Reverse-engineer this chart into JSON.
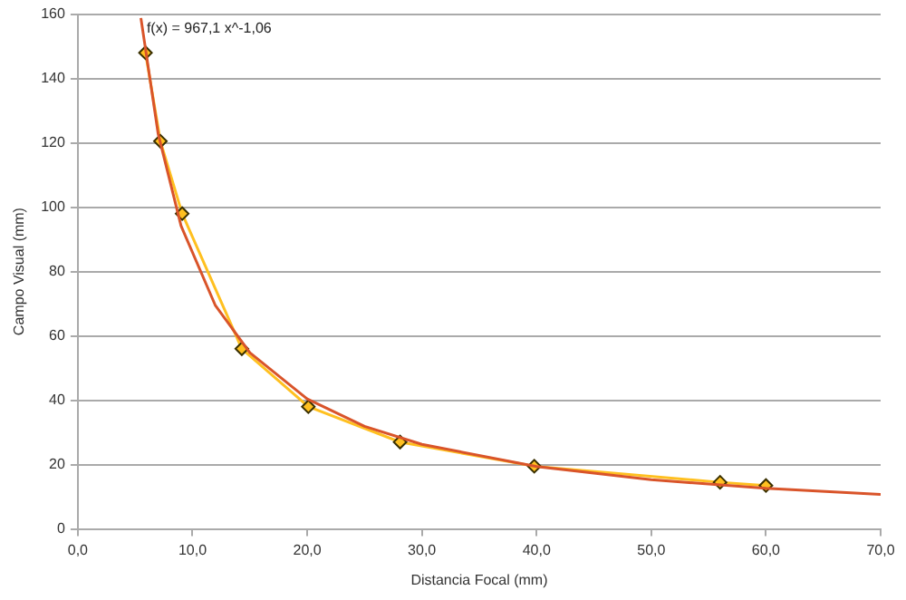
{
  "chart_data": {
    "type": "scatter",
    "xlabel": "Distancia Focal (mm)",
    "ylabel": "Campo Visual (mm)",
    "annotations": [
      "f(x) = 967,1 x^-1,06"
    ],
    "series": [
      {
        "type": "line",
        "color": "#ffc020",
        "marker": "diamond",
        "x": [
          5.9,
          7.2,
          9.1,
          14.3,
          20.1,
          28.1,
          39.8,
          56,
          60
        ],
        "values": [
          148,
          120.5,
          98,
          56,
          38,
          27,
          19.5,
          14.5,
          13.5
        ]
      },
      {
        "type": "line",
        "color": "#d9542a",
        "marker": "none",
        "x": [
          5.5,
          7,
          9,
          12,
          15,
          20,
          25,
          30,
          40,
          50,
          60,
          70
        ],
        "values": [
          158.8,
          122.9,
          94.2,
          69.4,
          54.8,
          40.4,
          31.9,
          26.3,
          19.4,
          15.3,
          12.6,
          10.7
        ]
      }
    ],
    "xlim": [
      0,
      70
    ],
    "xticks": [
      {
        "value": 0,
        "label": "0,0"
      },
      {
        "value": 10,
        "label": "10,0"
      },
      {
        "value": 20,
        "label": "20,0"
      },
      {
        "value": 30,
        "label": "30,0"
      },
      {
        "value": 40,
        "label": "40,0"
      },
      {
        "value": 50,
        "label": "50,0"
      },
      {
        "value": 60,
        "label": "60,0"
      },
      {
        "value": 70,
        "label": "70,0"
      }
    ],
    "ylim": [
      0,
      160
    ],
    "yticks": [
      0,
      20,
      40,
      60,
      80,
      100,
      120,
      140,
      160
    ],
    "grid": "y",
    "legend": false
  }
}
